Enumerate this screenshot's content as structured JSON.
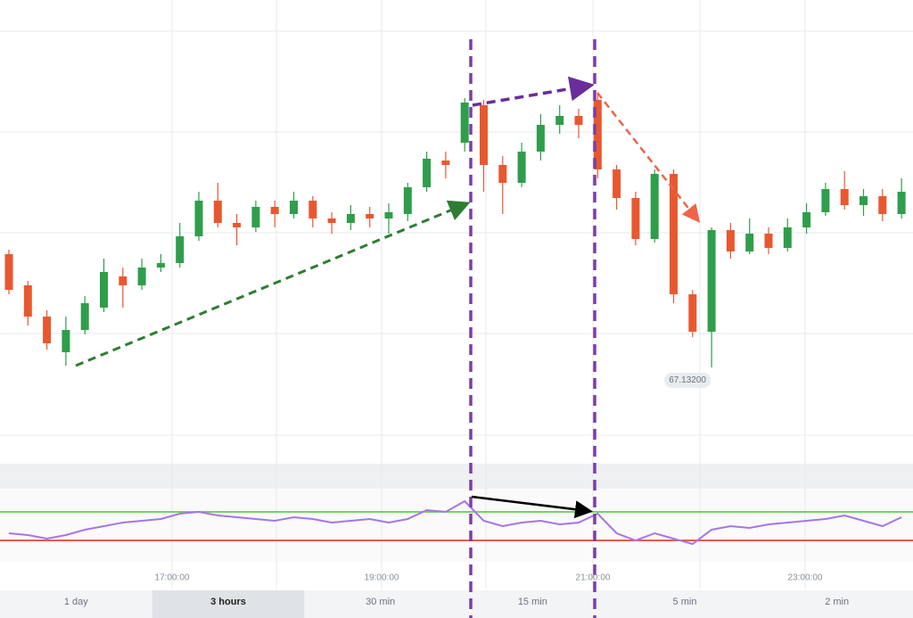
{
  "chart_data": [
    {
      "type": "candlestick",
      "ohlc": [
        [
          67.1447,
          67.1452,
          67.1402,
          67.1407
        ],
        [
          67.1412,
          67.1417,
          67.1367,
          67.1377
        ],
        [
          67.1377,
          67.1384,
          67.134,
          67.1347
        ],
        [
          67.1337,
          67.1377,
          67.1322,
          67.1362
        ],
        [
          67.1362,
          67.14,
          67.1357,
          67.1392
        ],
        [
          67.1387,
          67.1442,
          67.1382,
          67.1427
        ],
        [
          67.1422,
          67.1432,
          67.1387,
          67.1412
        ],
        [
          67.1412,
          67.1442,
          67.1407,
          67.1432
        ],
        [
          67.1432,
          67.1447,
          67.1427,
          67.1437
        ],
        [
          67.1437,
          67.1482,
          67.1432,
          67.1467
        ],
        [
          67.1467,
          67.1517,
          67.1462,
          67.1507
        ],
        [
          67.1507,
          67.1527,
          67.1477,
          67.1482
        ],
        [
          67.1482,
          67.1492,
          67.1457,
          67.1477
        ],
        [
          67.1477,
          67.1507,
          67.1472,
          67.15
        ],
        [
          67.15,
          67.1507,
          67.1477,
          67.1492
        ],
        [
          67.1492,
          67.1517,
          67.1487,
          67.1507
        ],
        [
          67.1507,
          67.1512,
          67.1477,
          67.1487
        ],
        [
          67.1487,
          67.1494,
          67.147,
          67.1482
        ],
        [
          67.1482,
          67.1502,
          67.1474,
          67.1492
        ],
        [
          67.1492,
          67.15,
          67.1477,
          67.1487
        ],
        [
          67.1487,
          67.1504,
          67.147,
          67.1494
        ],
        [
          67.1492,
          67.1527,
          67.1484,
          67.1522
        ],
        [
          67.1522,
          67.1562,
          67.1517,
          67.1554
        ],
        [
          67.1552,
          67.1562,
          67.1532,
          67.1547
        ],
        [
          67.1572,
          67.1622,
          67.1562,
          67.1617
        ],
        [
          67.1614,
          67.162,
          67.1517,
          67.1547
        ],
        [
          67.1547,
          67.1557,
          67.1492,
          67.1527
        ],
        [
          67.1527,
          67.1572,
          67.1522,
          67.1562
        ],
        [
          67.1562,
          67.1604,
          67.1552,
          67.1592
        ],
        [
          67.1592,
          67.1614,
          67.1582,
          67.1602
        ],
        [
          67.1602,
          67.161,
          67.1577,
          67.1592
        ],
        [
          67.162,
          67.1627,
          67.1532,
          67.1542
        ],
        [
          67.1542,
          67.1547,
          67.1497,
          67.151
        ],
        [
          67.151,
          67.1517,
          67.1457,
          67.1464
        ],
        [
          67.1464,
          67.1542,
          67.146,
          67.1537
        ],
        [
          67.1537,
          67.1542,
          67.1392,
          67.1402
        ],
        [
          67.1402,
          67.1407,
          67.1354,
          67.136
        ],
        [
          67.136,
          67.1477,
          67.132,
          67.1474
        ],
        [
          67.1474,
          67.1482,
          67.1442,
          67.145
        ],
        [
          67.145,
          67.1487,
          67.1447,
          67.147
        ],
        [
          67.147,
          67.1477,
          67.1447,
          67.1454
        ],
        [
          67.1454,
          67.1487,
          67.145,
          67.1477
        ],
        [
          67.1477,
          67.1504,
          67.147,
          67.1494
        ],
        [
          67.1494,
          67.1527,
          67.149,
          67.152
        ],
        [
          67.152,
          67.154,
          67.1497,
          67.1502
        ],
        [
          67.1502,
          67.152,
          67.149,
          67.1512
        ],
        [
          67.1512,
          67.152,
          67.1484,
          67.1492
        ],
        [
          67.1492,
          67.1532,
          67.1487,
          67.1517
        ]
      ],
      "up_color": "#2f9e4a",
      "down_color": "#e8582f",
      "ylim": [
        67.1212,
        67.1732
      ],
      "price_tag": {
        "value": 67.132,
        "label": "67.13200"
      },
      "x_labels": [
        "17:00:00",
        "19:00:00",
        "21:00:00",
        "23:00:00"
      ]
    },
    {
      "type": "line",
      "values": [
        40,
        37.5,
        32.5,
        37.5,
        45,
        50,
        55,
        57.5,
        60,
        67.5,
        70,
        65,
        62.5,
        60,
        57.5,
        62.5,
        60,
        55,
        57.5,
        60,
        55,
        60,
        72.5,
        70,
        85,
        57.5,
        50,
        55,
        57.5,
        52.5,
        55,
        67.5,
        40,
        30,
        40,
        32.5,
        25,
        45,
        50,
        47.5,
        52.5,
        55,
        57.5,
        60,
        65,
        57.5,
        50,
        62.5
      ],
      "color": "#a874e6",
      "ylim": [
        0,
        100
      ],
      "levels": [
        70,
        30
      ],
      "level_colors": [
        "#5fcf4c",
        "#e2472f"
      ]
    }
  ],
  "toolbar": {
    "buttons": [
      "1 day",
      "3 hours",
      "30 min",
      "15 min",
      "5 min",
      "2 min"
    ],
    "selected": 1
  }
}
